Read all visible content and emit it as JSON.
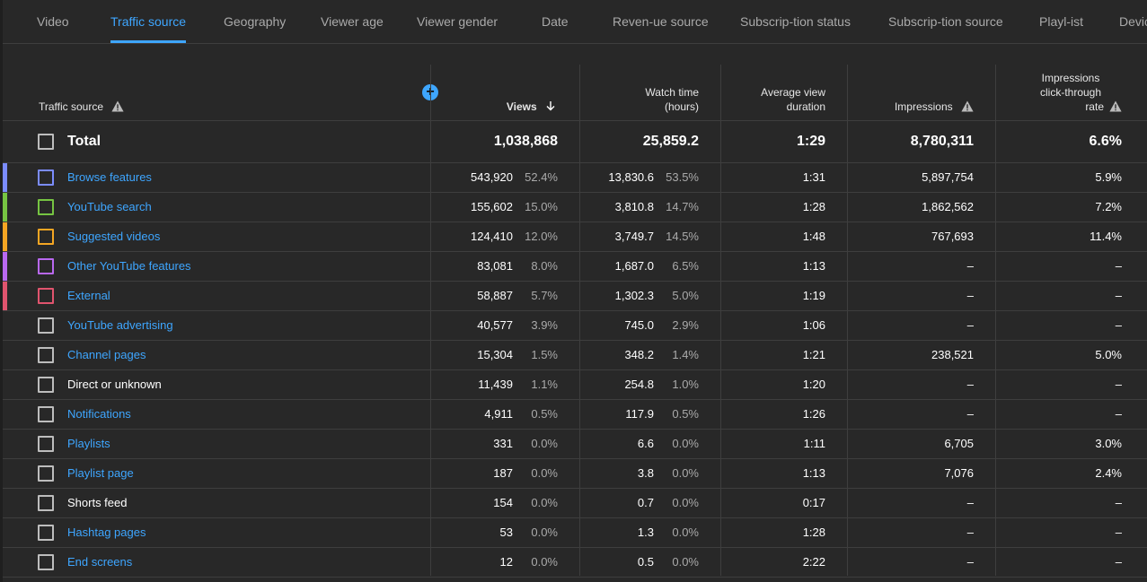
{
  "tabs": [
    "Video",
    "Traffic source",
    "Geography",
    "Viewer age",
    "Viewer gender",
    "Date",
    "Reven-ue source",
    "Subscrip-tion status",
    "Subscrip-tion source",
    "Playl-ist",
    "Devic"
  ],
  "active_tab": 1,
  "headers": {
    "traffic_source": "Traffic source",
    "views": "Views",
    "watch_time_1": "Watch time",
    "watch_time_2": "(hours)",
    "avd_1": "Average view",
    "avd_2": "duration",
    "impressions": "Impressions",
    "ctr_1": "Impressions",
    "ctr_2": "click-through",
    "ctr_3": "rate"
  },
  "icons": {
    "sort": "arrow-down-icon",
    "warning": "warning-icon",
    "add": "add-circle-icon"
  },
  "colors": {
    "accent": "#3ea6ff"
  },
  "total": {
    "label": "Total",
    "views": "1,038,868",
    "watch": "25,859.2",
    "avd": "1:29",
    "impressions": "8,780,311",
    "ctr": "6.6%"
  },
  "rows": [
    {
      "label": "Browse features",
      "link": true,
      "color": "#7b8cff",
      "views": "543,920",
      "views_pct": "52.4%",
      "watch": "13,830.6",
      "watch_pct": "53.5%",
      "avd": "1:31",
      "impressions": "5,897,754",
      "ctr": "5.9%"
    },
    {
      "label": "YouTube search",
      "link": true,
      "color": "#76c442",
      "views": "155,602",
      "views_pct": "15.0%",
      "watch": "3,810.8",
      "watch_pct": "14.7%",
      "avd": "1:28",
      "impressions": "1,862,562",
      "ctr": "7.2%"
    },
    {
      "label": "Suggested videos",
      "link": true,
      "color": "#f5a623",
      "views": "124,410",
      "views_pct": "12.0%",
      "watch": "3,749.7",
      "watch_pct": "14.5%",
      "avd": "1:48",
      "impressions": "767,693",
      "ctr": "11.4%"
    },
    {
      "label": "Other YouTube features",
      "link": true,
      "color": "#b968f0",
      "views": "83,081",
      "views_pct": "8.0%",
      "watch": "1,687.0",
      "watch_pct": "6.5%",
      "avd": "1:13",
      "impressions": "–",
      "ctr": "–"
    },
    {
      "label": "External",
      "link": true,
      "color": "#e0546e",
      "views": "58,887",
      "views_pct": "5.7%",
      "watch": "1,302.3",
      "watch_pct": "5.0%",
      "avd": "1:19",
      "impressions": "–",
      "ctr": "–"
    },
    {
      "label": "YouTube advertising",
      "link": true,
      "color": "",
      "views": "40,577",
      "views_pct": "3.9%",
      "watch": "745.0",
      "watch_pct": "2.9%",
      "avd": "1:06",
      "impressions": "–",
      "ctr": "–"
    },
    {
      "label": "Channel pages",
      "link": true,
      "color": "",
      "views": "15,304",
      "views_pct": "1.5%",
      "watch": "348.2",
      "watch_pct": "1.4%",
      "avd": "1:21",
      "impressions": "238,521",
      "ctr": "5.0%"
    },
    {
      "label": "Direct or unknown",
      "link": false,
      "color": "",
      "views": "11,439",
      "views_pct": "1.1%",
      "watch": "254.8",
      "watch_pct": "1.0%",
      "avd": "1:20",
      "impressions": "–",
      "ctr": "–"
    },
    {
      "label": "Notifications",
      "link": true,
      "color": "",
      "views": "4,911",
      "views_pct": "0.5%",
      "watch": "117.9",
      "watch_pct": "0.5%",
      "avd": "1:26",
      "impressions": "–",
      "ctr": "–"
    },
    {
      "label": "Playlists",
      "link": true,
      "color": "",
      "views": "331",
      "views_pct": "0.0%",
      "watch": "6.6",
      "watch_pct": "0.0%",
      "avd": "1:11",
      "impressions": "6,705",
      "ctr": "3.0%"
    },
    {
      "label": "Playlist page",
      "link": true,
      "color": "",
      "views": "187",
      "views_pct": "0.0%",
      "watch": "3.8",
      "watch_pct": "0.0%",
      "avd": "1:13",
      "impressions": "7,076",
      "ctr": "2.4%"
    },
    {
      "label": "Shorts feed",
      "link": false,
      "color": "",
      "views": "154",
      "views_pct": "0.0%",
      "watch": "0.7",
      "watch_pct": "0.0%",
      "avd": "0:17",
      "impressions": "–",
      "ctr": "–"
    },
    {
      "label": "Hashtag pages",
      "link": true,
      "color": "",
      "views": "53",
      "views_pct": "0.0%",
      "watch": "1.3",
      "watch_pct": "0.0%",
      "avd": "1:28",
      "impressions": "–",
      "ctr": "–"
    },
    {
      "label": "End screens",
      "link": true,
      "color": "",
      "views": "12",
      "views_pct": "0.0%",
      "watch": "0.5",
      "watch_pct": "0.0%",
      "avd": "2:22",
      "impressions": "–",
      "ctr": "–"
    }
  ]
}
